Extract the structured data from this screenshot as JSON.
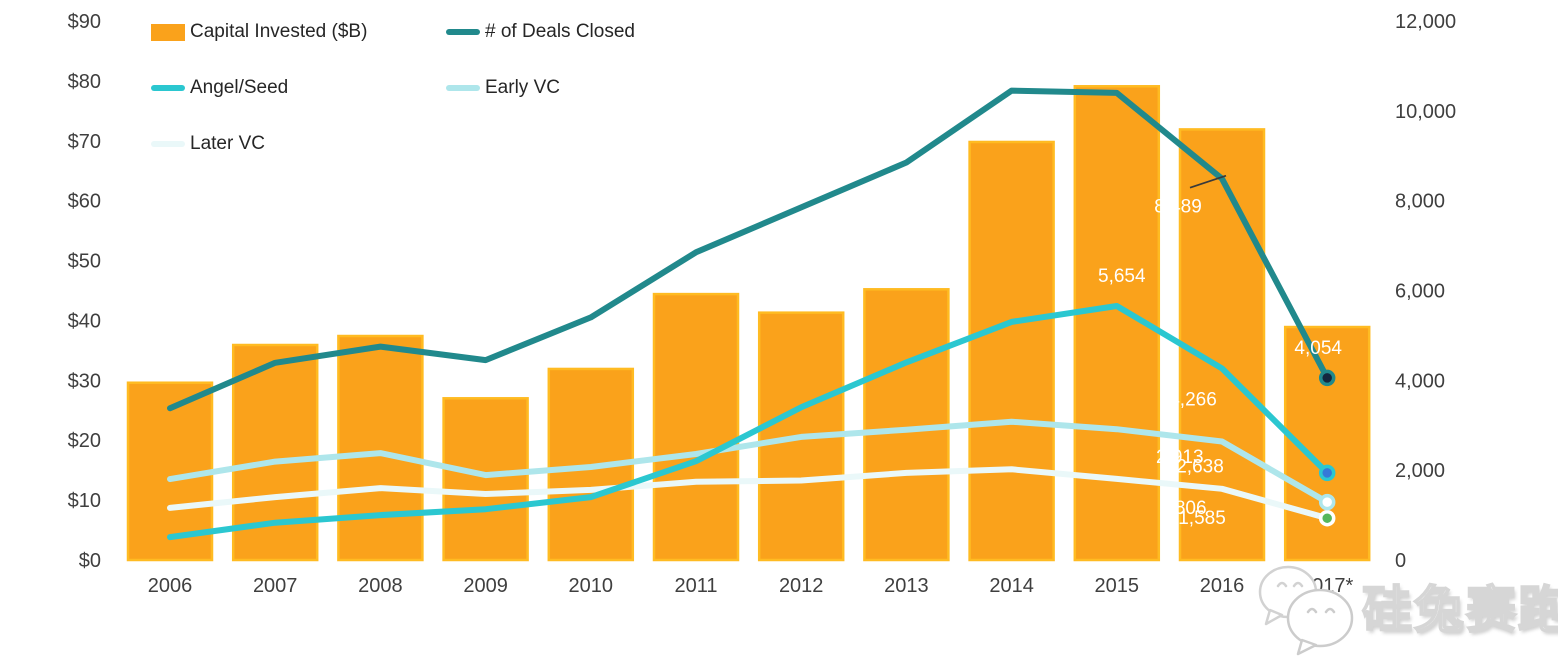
{
  "chart_data": {
    "type": "combo-bar-line",
    "title": "",
    "grid": false,
    "legend_position": "top-left",
    "categories": [
      "2006",
      "2007",
      "2008",
      "2009",
      "2010",
      "2011",
      "2012",
      "2013",
      "2014",
      "2015",
      "2016",
      "2017*"
    ],
    "bar_series": {
      "name": "Capital Invested ($B)",
      "axis": "left",
      "color": "#FAA21B",
      "border_color": "#FFBB22",
      "values": [
        29.6,
        35.9,
        37.4,
        27.0,
        31.9,
        44.4,
        41.3,
        45.2,
        69.8,
        79.1,
        71.9,
        38.9
      ]
    },
    "line_series": [
      {
        "name": "Later VC",
        "axis": "right",
        "color": "#EAF8F9",
        "endpoint_fill": "#57B75B",
        "endpoint_ring": "#FFFFFF",
        "values": [
          1160,
          1400,
          1600,
          1470,
          1560,
          1740,
          1770,
          1940,
          2020,
          1806,
          1585,
          930
        ]
      },
      {
        "name": "Early VC",
        "axis": "right",
        "color": "#AEE6EB",
        "endpoint_fill": "#FFFFFF",
        "endpoint_ring": "#AEE6EB",
        "values": [
          1800,
          2190,
          2380,
          1890,
          2070,
          2360,
          2740,
          2900,
          3080,
          2913,
          2638,
          1290
        ]
      },
      {
        "name": "Angel/Seed",
        "axis": "right",
        "color": "#2BC7D0",
        "endpoint_fill": "#3579D8",
        "endpoint_ring": "#2BC7D0",
        "values": [
          510,
          830,
          1000,
          1130,
          1400,
          2200,
          3400,
          4400,
          5300,
          5654,
          4266,
          1940
        ]
      },
      {
        "name": "# of Deals Closed",
        "axis": "right",
        "color": "#21898C",
        "endpoint_fill": "#14273E",
        "endpoint_ring": "#21898C",
        "values": [
          3380,
          4390,
          4750,
          4450,
          5400,
          6850,
          7850,
          8850,
          10450,
          10400,
          8489,
          4054
        ]
      }
    ],
    "point_labels": [
      {
        "series": "Angel/Seed",
        "category": "2015",
        "text": "5,654"
      },
      {
        "series": "Angel/Seed",
        "category": "2016",
        "text": "4,266"
      },
      {
        "series": "Early VC",
        "category": "2015",
        "text": "2,913"
      },
      {
        "series": "Early VC",
        "category": "2016",
        "text": "2,638"
      },
      {
        "series": "Later VC",
        "category": "2015",
        "text": "1,806"
      },
      {
        "series": "Later VC",
        "category": "2016",
        "text": "1,585"
      },
      {
        "series": "# of Deals Closed",
        "category": "2016",
        "text": "8,489",
        "leader": true
      },
      {
        "series": "# of Deals Closed",
        "category": "2017*",
        "text": "4,054"
      }
    ],
    "left_axis": {
      "min": 0,
      "max": 90,
      "ticks": [
        "$0",
        "$10",
        "$20",
        "$30",
        "$40",
        "$50",
        "$60",
        "$70",
        "$80",
        "$90"
      ]
    },
    "right_axis": {
      "min": 0,
      "max": 12000,
      "ticks": [
        "0",
        "2,000",
        "4,000",
        "6,000",
        "8,000",
        "10,000",
        "12,000"
      ]
    }
  },
  "legend": {
    "items": [
      {
        "label": "Capital Invested ($B)",
        "type": "bar",
        "color": "#FAA21B",
        "col": 0,
        "row": 0
      },
      {
        "label": "# of Deals Closed",
        "type": "line",
        "color": "#21898C",
        "col": 1,
        "row": 0
      },
      {
        "label": "Angel/Seed",
        "type": "line",
        "color": "#2BC7D0",
        "col": 0,
        "row": 1
      },
      {
        "label": "Early VC",
        "type": "line",
        "color": "#AEE6EB",
        "col": 1,
        "row": 1
      },
      {
        "label": "Later VC",
        "type": "line",
        "color": "#EAF8F9",
        "col": 0,
        "row": 2
      }
    ]
  },
  "watermark": {
    "text": "硅兔赛跑",
    "icon": "wechat-chat-bubbles-icon"
  }
}
